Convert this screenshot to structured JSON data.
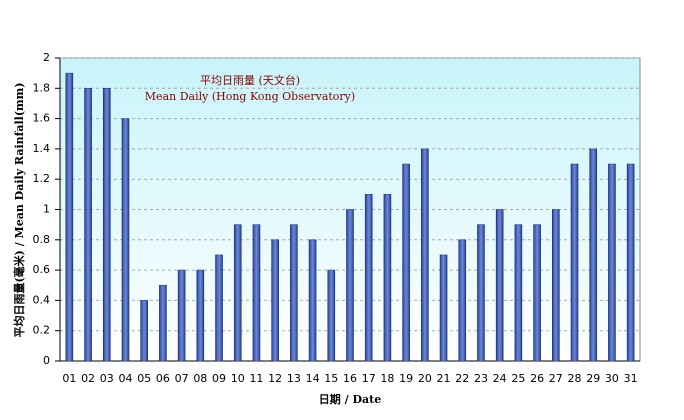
{
  "chart_data": {
    "type": "bar",
    "title": "平均日雨量 (天文台)",
    "subtitle": "Mean Daily (Hong Kong Observatory)",
    "x_label": "日期 / Date",
    "y_label": "平均日雨量(毫米) / Mean Daily Rainfall(mm)",
    "categories": [
      "01",
      "02",
      "03",
      "04",
      "05",
      "06",
      "07",
      "08",
      "09",
      "10",
      "11",
      "12",
      "13",
      "14",
      "15",
      "16",
      "17",
      "18",
      "19",
      "20",
      "21",
      "22",
      "23",
      "24",
      "25",
      "26",
      "27",
      "28",
      "29",
      "30",
      "31"
    ],
    "values": [
      1.9,
      1.8,
      1.8,
      1.6,
      0.4,
      0.5,
      0.6,
      0.6,
      0.7,
      0.9,
      0.9,
      0.8,
      0.9,
      0.8,
      0.6,
      1.0,
      1.1,
      1.1,
      1.3,
      1.4,
      0.7,
      0.8,
      0.9,
      1.0,
      0.9,
      0.9,
      1.0,
      1.3,
      1.4,
      1.3,
      1.3
    ],
    "color": "#3a5fcd",
    "ylim": [
      0,
      2
    ],
    "yticks": [
      0,
      0.2,
      0.4,
      0.6,
      0.8,
      1,
      1.2,
      1.4,
      1.6,
      1.8,
      2
    ],
    "grid": true
  }
}
